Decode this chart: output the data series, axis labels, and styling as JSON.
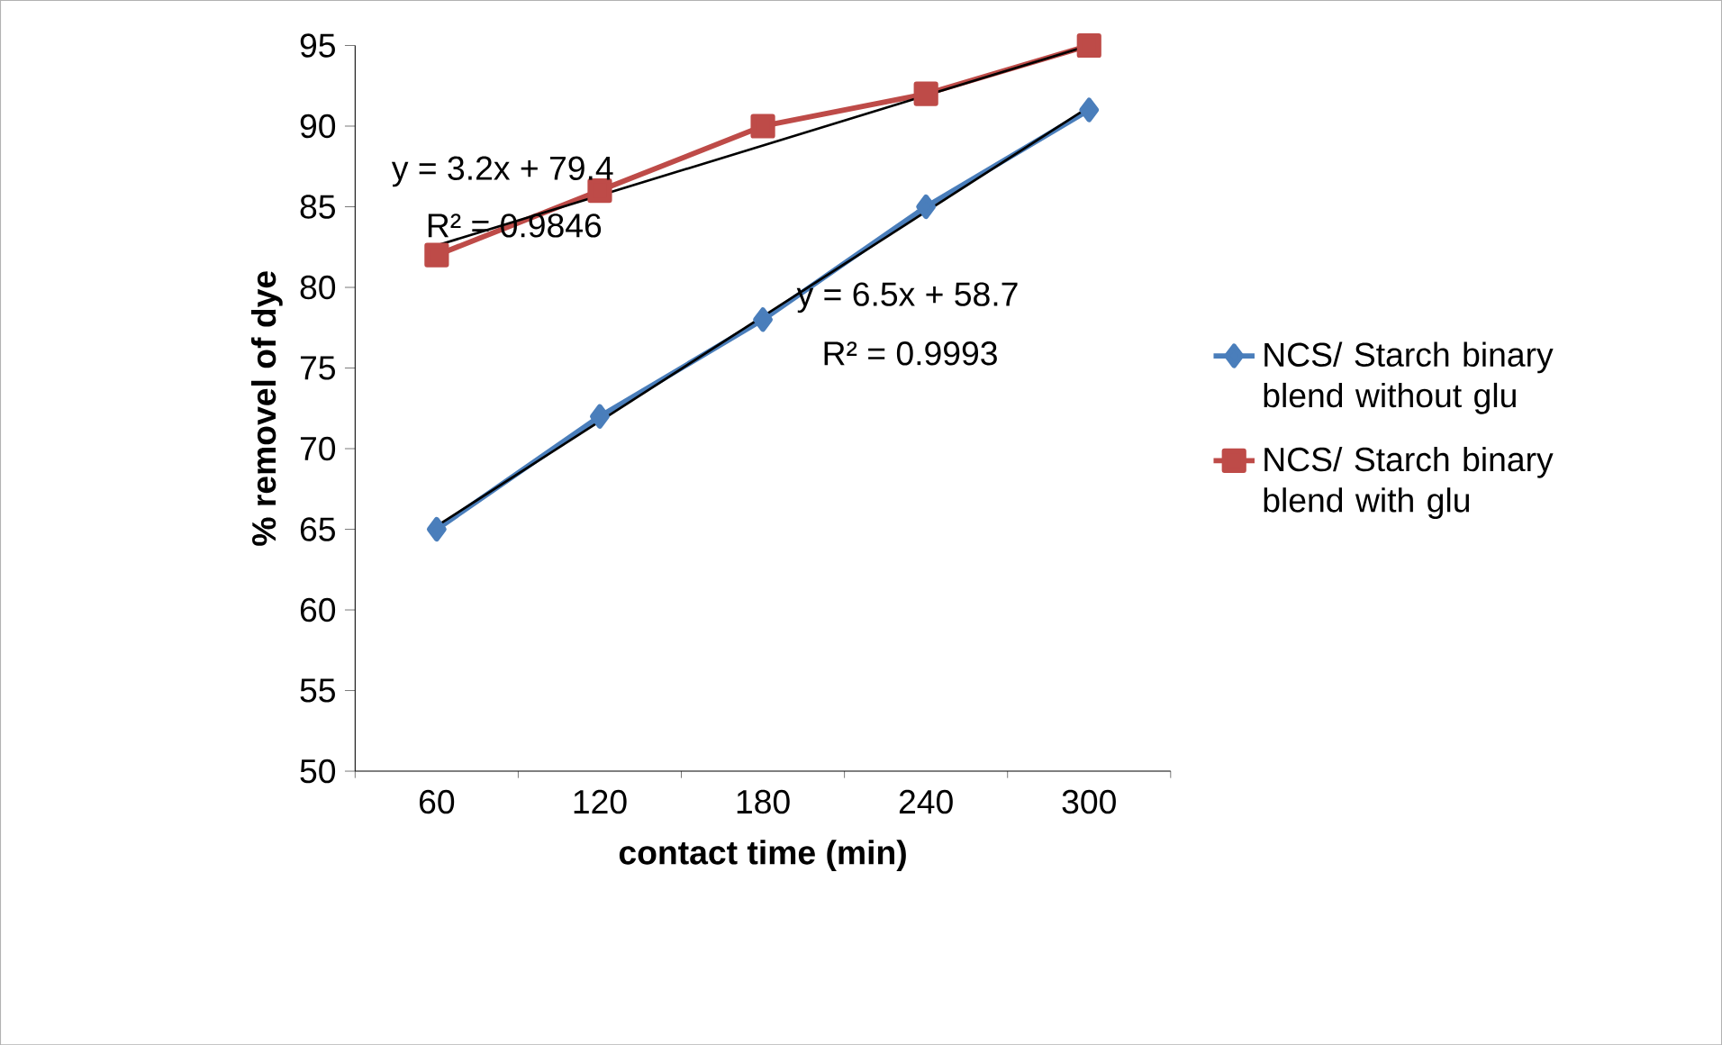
{
  "chart_data": {
    "type": "line",
    "xlabel": "contact time (min)",
    "ylabel": "% removel of dye",
    "categories": [
      "60",
      "120",
      "180",
      "240",
      "300"
    ],
    "series": [
      {
        "name": "NCS/ Starch binary blend without glu",
        "color": "#4a7ebb",
        "marker": "diamond",
        "values": [
          65,
          72,
          78,
          85,
          91
        ]
      },
      {
        "name": "NCS/ Starch binary blend with glu",
        "color": "#be4b48",
        "marker": "square",
        "values": [
          82,
          86,
          90,
          92,
          95
        ]
      },
      {
        "type": "line",
        "color": "#000000",
        "marker": "none",
        "x": [
          "60",
          "300"
        ],
        "values": [
          65.2,
          91.2
        ]
      },
      {
        "type": "line",
        "color": "#000000",
        "marker": "none",
        "x": [
          "60",
          "300"
        ],
        "values": [
          82.6,
          95
        ]
      }
    ],
    "ylim": [
      50,
      95
    ],
    "yticks": [
      50,
      55,
      60,
      65,
      70,
      75,
      80,
      85,
      90,
      95
    ],
    "grid": false,
    "legend": "right",
    "annotations": [
      "y = 3.2x + 79.4",
      "R² = 0.9846",
      "y = 6.5x + 58.7",
      "R² = 0.9993"
    ]
  }
}
